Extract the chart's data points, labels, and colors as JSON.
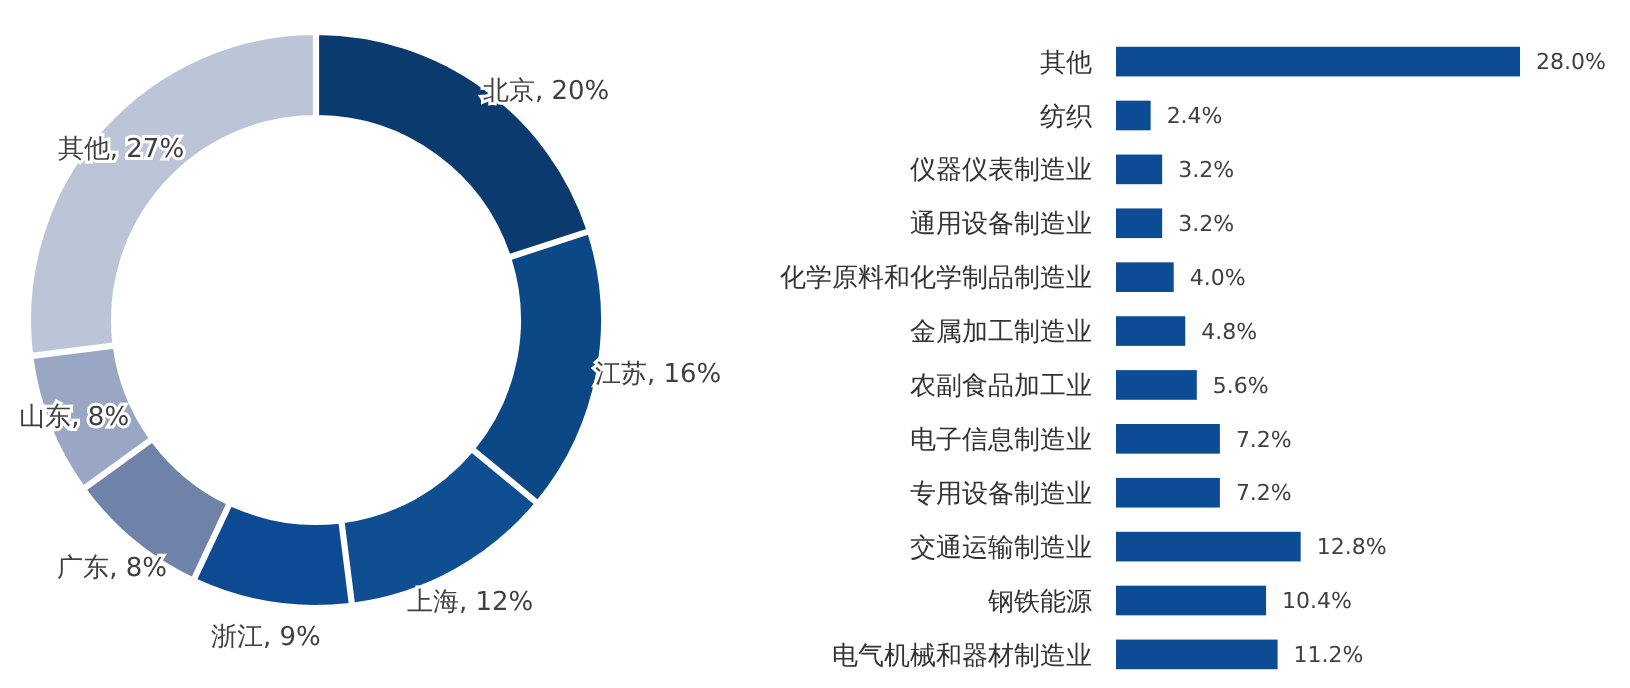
{
  "chart_data": [
    {
      "type": "donut",
      "categories": [
        "北京",
        "江苏",
        "上海",
        "浙江",
        "广东",
        "山东",
        "其他"
      ],
      "values": [
        20,
        16,
        12,
        9,
        8,
        8,
        27
      ],
      "colors": [
        "#0b3a6f",
        "#0d4886",
        "#0e4e91",
        "#0c4b93",
        "#6f82a8",
        "#99a7c4",
        "#bcc5d8"
      ],
      "value_labels": [
        ", 20%",
        ", 16%",
        ", 12%",
        ", 9%",
        ", 8%",
        ", 8%",
        ", 27%"
      ]
    },
    {
      "type": "bar",
      "orientation": "horizontal",
      "categories": [
        "其他",
        "纺织",
        "仪器仪表制造业",
        "通用设备制造业",
        "化学原料和化学制品制造业",
        "金属加工制造业",
        "农副食品加工业",
        "电子信息制造业",
        "专用设备制造业",
        "交通运输制造业",
        "钢铁能源",
        "电气机械和器材制造业"
      ],
      "values": [
        28.0,
        2.4,
        3.2,
        3.2,
        4.0,
        4.8,
        5.6,
        7.2,
        7.2,
        12.8,
        10.4,
        11.2
      ],
      "color": "#0c4c94",
      "value_labels": [
        "28.0%",
        "2.4%",
        "3.2%",
        "3.2%",
        "4.0%",
        "4.8%",
        "5.6%",
        "7.2%",
        "7.2%",
        "12.8%",
        "10.4%",
        "11.2%"
      ]
    }
  ]
}
